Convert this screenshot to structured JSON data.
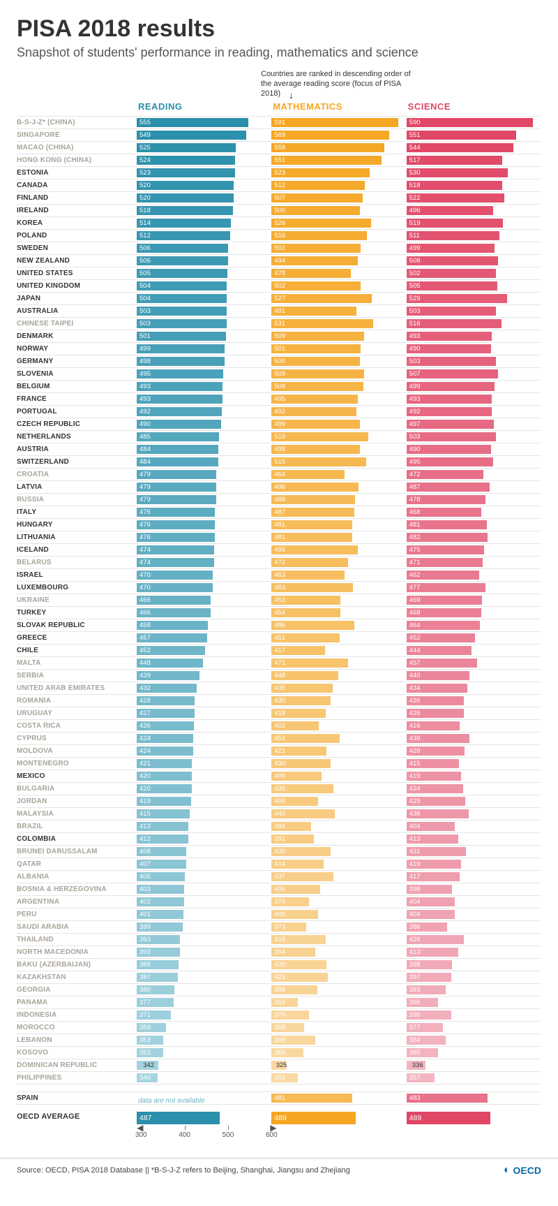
{
  "title": "PISA 2018 results",
  "subtitle": "Snapshot of students' performance in reading, mathematics and science",
  "ranking_note": "Countries are ranked in descending order of the average reading score (focus of PISA 2018)",
  "columns": [
    {
      "key": "reading",
      "label": "READING",
      "header_color": "#2a8fab"
    },
    {
      "key": "math",
      "label": "MATHEMATICS",
      "header_color": "#f5a623"
    },
    {
      "key": "science",
      "label": "SCIENCE",
      "header_color": "#e04665"
    }
  ],
  "color_ramp": {
    "reading": {
      "dark": "#2a8fab",
      "light": "#a6d4e0"
    },
    "math": {
      "dark": "#f5a623",
      "light": "#f9d9a3"
    },
    "science": {
      "dark": "#e04665",
      "light": "#f3b6c2"
    }
  },
  "bar_scale": {
    "min": 290,
    "max": 600
  },
  "axis_ticks": [
    300,
    400,
    500,
    600
  ],
  "rows": [
    {
      "label": "B-S-J-Z* (CHINA)",
      "muted": true,
      "reading": 555,
      "math": 591,
      "science": 590
    },
    {
      "label": "SINGAPORE",
      "muted": true,
      "reading": 549,
      "math": 569,
      "science": 551
    },
    {
      "label": "MACAO (CHINA)",
      "muted": true,
      "reading": 525,
      "math": 558,
      "science": 544
    },
    {
      "label": "HONG KONG (CHINA)",
      "muted": true,
      "reading": 524,
      "math": 551,
      "science": 517
    },
    {
      "label": "ESTONIA",
      "reading": 523,
      "math": 523,
      "science": 530
    },
    {
      "label": "CANADA",
      "reading": 520,
      "math": 512,
      "science": 518
    },
    {
      "label": "FINLAND",
      "reading": 520,
      "math": 507,
      "science": 522
    },
    {
      "label": "IRELAND",
      "reading": 518,
      "math": 500,
      "science": 496
    },
    {
      "label": "KOREA",
      "reading": 514,
      "math": 526,
      "science": 519
    },
    {
      "label": "POLAND",
      "reading": 512,
      "math": 516,
      "science": 511
    },
    {
      "label": "SWEDEN",
      "reading": 506,
      "math": 502,
      "science": 499
    },
    {
      "label": "NEW ZEALAND",
      "reading": 506,
      "math": 494,
      "science": 508
    },
    {
      "label": "UNITED STATES",
      "reading": 505,
      "math": 478,
      "science": 502
    },
    {
      "label": "UNITED KINGDOM",
      "reading": 504,
      "math": 502,
      "science": 505
    },
    {
      "label": "JAPAN",
      "reading": 504,
      "math": 527,
      "science": 529
    },
    {
      "label": "AUSTRALIA",
      "reading": 503,
      "math": 491,
      "science": 503
    },
    {
      "label": "CHINESE TAIPEI",
      "muted": true,
      "reading": 503,
      "math": 531,
      "science": 516
    },
    {
      "label": "DENMARK",
      "reading": 501,
      "math": 509,
      "science": 493
    },
    {
      "label": "NORWAY",
      "reading": 499,
      "math": 501,
      "science": 490
    },
    {
      "label": "GERMANY",
      "reading": 498,
      "math": 500,
      "science": 503
    },
    {
      "label": "SLOVENIA",
      "reading": 495,
      "math": 509,
      "science": 507
    },
    {
      "label": "BELGIUM",
      "reading": 493,
      "math": 508,
      "science": 499
    },
    {
      "label": "FRANCE",
      "reading": 493,
      "math": 495,
      "science": 493
    },
    {
      "label": "PORTUGAL",
      "reading": 492,
      "math": 492,
      "science": 492
    },
    {
      "label": "CZECH REPUBLIC",
      "reading": 490,
      "math": 499,
      "science": 497
    },
    {
      "label": "NETHERLANDS",
      "reading": 485,
      "math": 519,
      "science": 503
    },
    {
      "label": "AUSTRIA",
      "reading": 484,
      "math": 499,
      "science": 490
    },
    {
      "label": "SWITZERLAND",
      "reading": 484,
      "math": 515,
      "science": 495
    },
    {
      "label": "CROATIA",
      "muted": true,
      "reading": 479,
      "math": 464,
      "science": 472
    },
    {
      "label": "LATVIA",
      "reading": 479,
      "math": 496,
      "science": 487
    },
    {
      "label": "RUSSIA",
      "muted": true,
      "reading": 479,
      "math": 488,
      "science": 478
    },
    {
      "label": "ITALY",
      "reading": 476,
      "math": 487,
      "science": 468
    },
    {
      "label": "HUNGARY",
      "reading": 476,
      "math": 481,
      "science": 481
    },
    {
      "label": "LITHUANIA",
      "reading": 476,
      "math": 481,
      "science": 482
    },
    {
      "label": "ICELAND",
      "reading": 474,
      "math": 495,
      "science": 475
    },
    {
      "label": "BELARUS",
      "muted": true,
      "reading": 474,
      "math": 472,
      "science": 471
    },
    {
      "label": "ISRAEL",
      "reading": 470,
      "math": 463,
      "science": 462
    },
    {
      "label": "LUXEMBOURG",
      "reading": 470,
      "math": 483,
      "science": 477
    },
    {
      "label": "UKRAINE",
      "muted": true,
      "reading": 466,
      "math": 453,
      "science": 469
    },
    {
      "label": "TURKEY",
      "reading": 466,
      "math": 454,
      "science": 468
    },
    {
      "label": "SLOVAK REPUBLIC",
      "reading": 458,
      "math": 486,
      "science": 464
    },
    {
      "label": "GREECE",
      "reading": 457,
      "math": 451,
      "science": 452
    },
    {
      "label": "CHILE",
      "reading": 452,
      "math": 417,
      "science": 444
    },
    {
      "label": "MALTA",
      "muted": true,
      "reading": 448,
      "math": 472,
      "science": 457
    },
    {
      "label": "SERBIA",
      "muted": true,
      "reading": 439,
      "math": 448,
      "science": 440
    },
    {
      "label": "UNITED ARAB EMIRATES",
      "muted": true,
      "reading": 432,
      "math": 435,
      "science": 434
    },
    {
      "label": "ROMANIA",
      "muted": true,
      "reading": 428,
      "math": 430,
      "science": 426
    },
    {
      "label": "URUGUAY",
      "muted": true,
      "reading": 427,
      "math": 418,
      "science": 426
    },
    {
      "label": "COSTA RICA",
      "muted": true,
      "reading": 426,
      "math": 402,
      "science": 416
    },
    {
      "label": "CYPRUS",
      "muted": true,
      "reading": 424,
      "math": 451,
      "science": 439
    },
    {
      "label": "MOLDOVA",
      "muted": true,
      "reading": 424,
      "math": 421,
      "science": 428
    },
    {
      "label": "MONTENEGRO",
      "muted": true,
      "reading": 421,
      "math": 430,
      "science": 415
    },
    {
      "label": "MEXICO",
      "reading": 420,
      "math": 409,
      "science": 419
    },
    {
      "label": "BULGARIA",
      "muted": true,
      "reading": 420,
      "math": 436,
      "science": 424
    },
    {
      "label": "JORDAN",
      "muted": true,
      "reading": 419,
      "math": 400,
      "science": 429
    },
    {
      "label": "MALAYSIA",
      "muted": true,
      "reading": 415,
      "math": 440,
      "science": 438
    },
    {
      "label": "BRAZIL",
      "muted": true,
      "reading": 413,
      "math": 384,
      "science": 404
    },
    {
      "label": "COLOMBIA",
      "reading": 412,
      "math": 391,
      "science": 413
    },
    {
      "label": "BRUNEI DARUSSALAM",
      "muted": true,
      "reading": 408,
      "math": 430,
      "science": 431
    },
    {
      "label": "QATAR",
      "muted": true,
      "reading": 407,
      "math": 414,
      "science": 419
    },
    {
      "label": "ALBANIA",
      "muted": true,
      "reading": 405,
      "math": 437,
      "science": 417
    },
    {
      "label": "BOSNIA & HERZEGOVINA",
      "muted": true,
      "reading": 403,
      "math": 406,
      "science": 398
    },
    {
      "label": "ARGENTINA",
      "muted": true,
      "reading": 402,
      "math": 379,
      "science": 404
    },
    {
      "label": "PERU",
      "muted": true,
      "reading": 401,
      "math": 400,
      "science": 404
    },
    {
      "label": "SAUDI ARABIA",
      "muted": true,
      "reading": 399,
      "math": 373,
      "science": 386
    },
    {
      "label": "THAILAND",
      "muted": true,
      "reading": 393,
      "math": 419,
      "science": 426
    },
    {
      "label": "NORTH MACEDONIA",
      "muted": true,
      "reading": 393,
      "math": 394,
      "science": 413
    },
    {
      "label": "BAKU (AZERBAIJAN)",
      "muted": true,
      "reading": 389,
      "math": 420,
      "science": 398
    },
    {
      "label": "KAZAKHSTAN",
      "muted": true,
      "reading": 387,
      "math": 423,
      "science": 397
    },
    {
      "label": "GEORGIA",
      "muted": true,
      "reading": 380,
      "math": 398,
      "science": 383
    },
    {
      "label": "PANAMA",
      "muted": true,
      "reading": 377,
      "math": 353,
      "science": 365
    },
    {
      "label": "INDONESIA",
      "muted": true,
      "reading": 371,
      "math": 379,
      "science": 396
    },
    {
      "label": "MOROCCO",
      "muted": true,
      "reading": 359,
      "math": 368,
      "science": 377
    },
    {
      "label": "LEBANON",
      "muted": true,
      "reading": 353,
      "math": 393,
      "science": 384
    },
    {
      "label": "KOSOVO",
      "muted": true,
      "reading": 353,
      "math": 366,
      "science": 365
    },
    {
      "label": "DOMINICAN REPUBLIC",
      "muted": true,
      "reading": 342,
      "math": 325,
      "science": 336,
      "value_out": true
    },
    {
      "label": "PHILIPPINES",
      "muted": true,
      "reading": 340,
      "math": 353,
      "science": 357
    }
  ],
  "spain": {
    "label": "SPAIN",
    "reading_na": "data are not available",
    "math": 481,
    "science": 483
  },
  "oecd_avg": {
    "label": "OECD AVERAGE",
    "reading": 487,
    "math": 489,
    "science": 489
  },
  "footer_source": "Source: OECD, PISA 2018 Database  ||  *B-S-J-Z refers to Beijing, Shanghai, Jiangsu and Zhejiang",
  "footer_logo": "OECD"
}
